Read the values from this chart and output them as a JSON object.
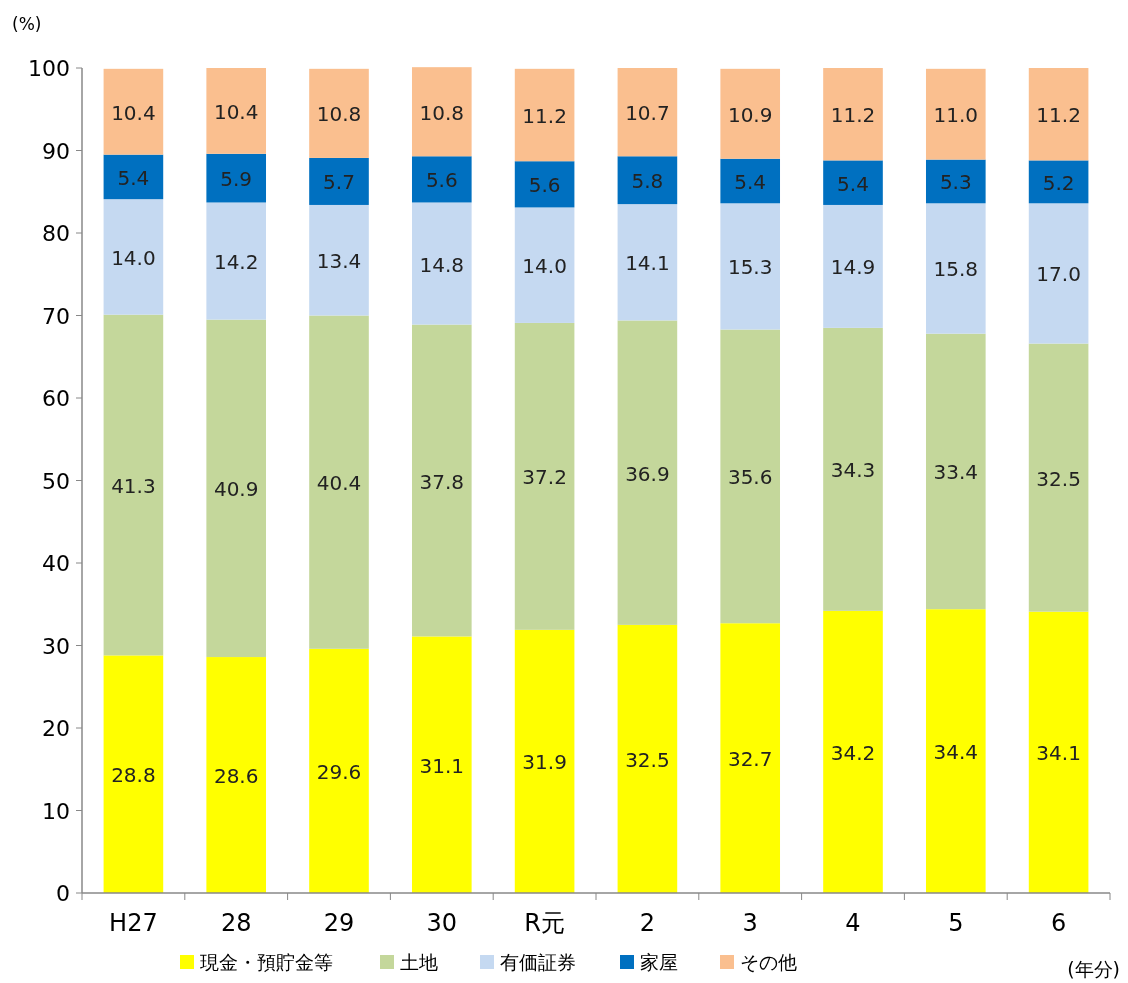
{
  "chart_data": {
    "type": "bar",
    "stacked": true,
    "ylabel": "(%)",
    "xlabel": "(年分)",
    "categories": [
      "H27",
      "28",
      "29",
      "30",
      "R元",
      "2",
      "3",
      "4",
      "5",
      "6"
    ],
    "series": [
      {
        "name": "現金・預貯金等",
        "color": "#ffff00",
        "values": [
          28.8,
          28.6,
          29.6,
          31.1,
          31.9,
          32.5,
          32.7,
          34.2,
          34.4,
          34.1
        ],
        "value_labels": [
          "28.8",
          "28.6",
          "29.6",
          "31.1",
          "31.9",
          "32.5",
          "32.7",
          "34.2",
          "34.4",
          "34.1"
        ]
      },
      {
        "name": "土地",
        "color": "#c4d79b",
        "values": [
          41.3,
          40.9,
          40.4,
          37.8,
          37.2,
          36.9,
          35.6,
          34.3,
          33.4,
          32.5
        ],
        "value_labels": [
          "41.3",
          "40.9",
          "40.4",
          "37.8",
          "37.2",
          "36.9",
          "35.6",
          "34.3",
          "33.4",
          "32.5"
        ]
      },
      {
        "name": "有価証券",
        "color": "#c5d9f1",
        "values": [
          14.0,
          14.2,
          13.4,
          14.8,
          14.0,
          14.1,
          15.3,
          14.9,
          15.8,
          17.0
        ],
        "value_labels": [
          "14.0",
          "14.2",
          "13.4",
          "14.8",
          "14.0",
          "14.1",
          "15.3",
          "14.9",
          "15.8",
          "17.0"
        ]
      },
      {
        "name": "家屋",
        "color": "#0070c0",
        "values": [
          5.4,
          5.9,
          5.7,
          5.6,
          5.6,
          5.8,
          5.4,
          5.4,
          5.3,
          5.2
        ],
        "value_labels": [
          "5.4",
          "5.9",
          "5.7",
          "5.6",
          "5.6",
          "5.8",
          "5.4",
          "5.4",
          "5.3",
          "5.2"
        ]
      },
      {
        "name": "その他",
        "color": "#fabf8f",
        "values": [
          10.4,
          10.4,
          10.8,
          10.8,
          11.2,
          10.7,
          10.9,
          11.2,
          11.0,
          11.2
        ],
        "value_labels": [
          "10.4",
          "10.4",
          "10.8",
          "10.8",
          "11.2",
          "10.7",
          "10.9",
          "11.2",
          "11.0",
          "11.2"
        ]
      }
    ],
    "ylim": [
      0,
      100
    ],
    "yticks": [
      0,
      10,
      20,
      30,
      40,
      50,
      60,
      70,
      80,
      90,
      100
    ],
    "grid": false,
    "legend": "bottom"
  }
}
